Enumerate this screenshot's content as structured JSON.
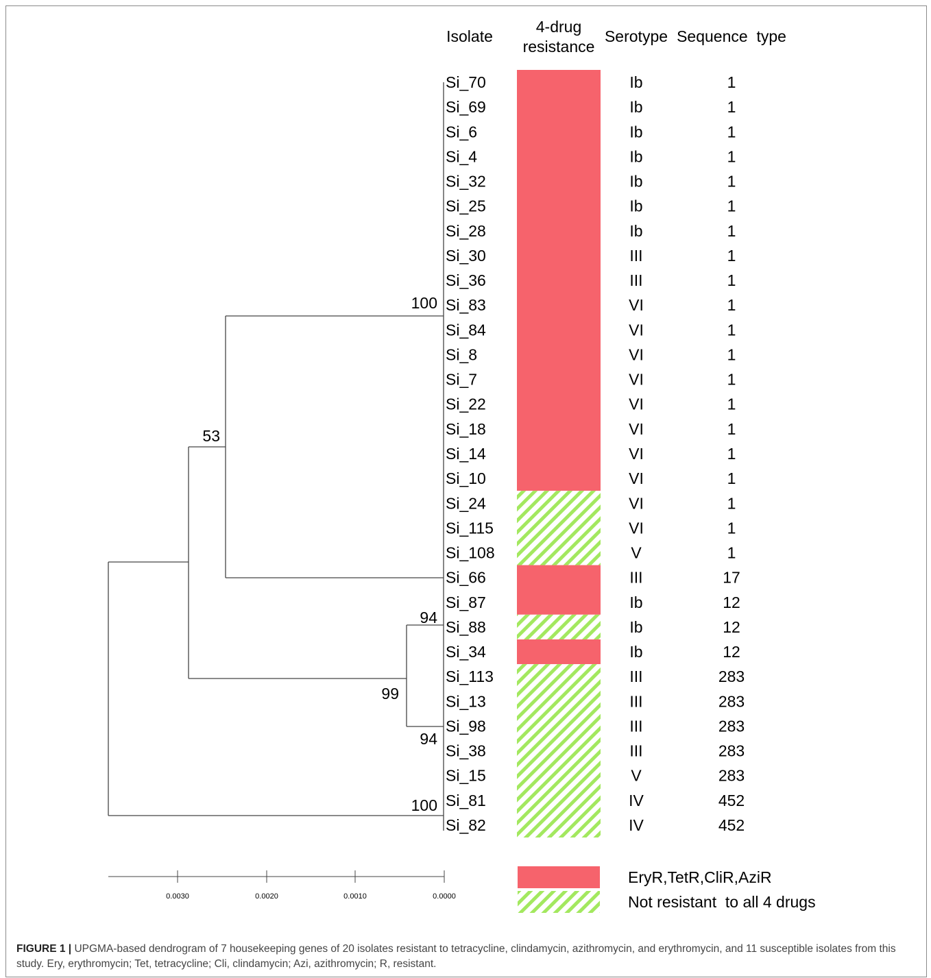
{
  "headers": {
    "isolate": "Isolate",
    "resistance_line1": "4-drug",
    "resistance_line2": "resistance",
    "serotype": "Serotype",
    "sequence_type": "Sequence  type"
  },
  "colors": {
    "resistant": "#f6636c",
    "not_resistant_stripe": "#a3e85f",
    "line": "#444444"
  },
  "rows": [
    {
      "isolate": "Si_70",
      "serotype": "Ib",
      "st": "1",
      "resistance": "resistant"
    },
    {
      "isolate": "Si_69",
      "serotype": "Ib",
      "st": "1",
      "resistance": "resistant"
    },
    {
      "isolate": "Si_6",
      "serotype": "Ib",
      "st": "1",
      "resistance": "resistant"
    },
    {
      "isolate": "Si_4",
      "serotype": "Ib",
      "st": "1",
      "resistance": "resistant"
    },
    {
      "isolate": "Si_32",
      "serotype": "Ib",
      "st": "1",
      "resistance": "resistant"
    },
    {
      "isolate": "Si_25",
      "serotype": "Ib",
      "st": "1",
      "resistance": "resistant"
    },
    {
      "isolate": "Si_28",
      "serotype": "Ib",
      "st": "1",
      "resistance": "resistant"
    },
    {
      "isolate": "Si_30",
      "serotype": "III",
      "st": "1",
      "resistance": "resistant"
    },
    {
      "isolate": "Si_36",
      "serotype": "III",
      "st": "1",
      "resistance": "resistant"
    },
    {
      "isolate": "Si_83",
      "serotype": "VI",
      "st": "1",
      "resistance": "resistant"
    },
    {
      "isolate": "Si_84",
      "serotype": "VI",
      "st": "1",
      "resistance": "resistant"
    },
    {
      "isolate": "Si_8",
      "serotype": "VI",
      "st": "1",
      "resistance": "resistant"
    },
    {
      "isolate": "Si_7",
      "serotype": "VI",
      "st": "1",
      "resistance": "resistant"
    },
    {
      "isolate": "Si_22",
      "serotype": "VI",
      "st": "1",
      "resistance": "resistant"
    },
    {
      "isolate": "Si_18",
      "serotype": "VI",
      "st": "1",
      "resistance": "resistant"
    },
    {
      "isolate": "Si_14",
      "serotype": "VI",
      "st": "1",
      "resistance": "resistant"
    },
    {
      "isolate": "Si_10",
      "serotype": "VI",
      "st": "1",
      "resistance": "resistant"
    },
    {
      "isolate": "Si_24",
      "serotype": "VI",
      "st": "1",
      "resistance": "not_resistant"
    },
    {
      "isolate": "Si_115",
      "serotype": "VI",
      "st": "1",
      "resistance": "not_resistant"
    },
    {
      "isolate": "Si_108",
      "serotype": "V",
      "st": "1",
      "resistance": "not_resistant"
    },
    {
      "isolate": "Si_66",
      "serotype": "III",
      "st": "17",
      "resistance": "resistant"
    },
    {
      "isolate": "Si_87",
      "serotype": "Ib",
      "st": "12",
      "resistance": "resistant"
    },
    {
      "isolate": "Si_88",
      "serotype": "Ib",
      "st": "12",
      "resistance": "not_resistant"
    },
    {
      "isolate": "Si_34",
      "serotype": "Ib",
      "st": "12",
      "resistance": "resistant"
    },
    {
      "isolate": "Si_113",
      "serotype": "III",
      "st": "283",
      "resistance": "not_resistant"
    },
    {
      "isolate": "Si_13",
      "serotype": "III",
      "st": "283",
      "resistance": "not_resistant"
    },
    {
      "isolate": "Si_98",
      "serotype": "III",
      "st": "283",
      "resistance": "not_resistant"
    },
    {
      "isolate": "Si_38",
      "serotype": "III",
      "st": "283",
      "resistance": "not_resistant"
    },
    {
      "isolate": "Si_15",
      "serotype": "V",
      "st": "283",
      "resistance": "not_resistant"
    },
    {
      "isolate": "Si_81",
      "serotype": "IV",
      "st": "452",
      "resistance": "not_resistant"
    },
    {
      "isolate": "Si_82",
      "serotype": "IV",
      "st": "452",
      "resistance": "not_resistant"
    }
  ],
  "bootstrap_labels": [
    "100",
    "53",
    "94",
    "99",
    "94",
    "100"
  ],
  "scale_labels": [
    "0.0030",
    "0.0020",
    "0.0010",
    "0.0000"
  ],
  "legend": {
    "resistant_label": "EryR,TetR,CliR,AziR",
    "not_resistant_label": "Not resistant  to all 4 drugs"
  },
  "caption": {
    "label": "FIGURE 1 |",
    "text": " UPGMA-based dendrogram of 7 housekeeping genes of 20 isolates resistant to tetracycline, clindamycin, azithromycin, and erythromycin, and 11 susceptible isolates from this study. Ery, erythromycin; Tet, tetracycline; Cli, clindamycin; Azi, azithromycin; R, resistant."
  }
}
